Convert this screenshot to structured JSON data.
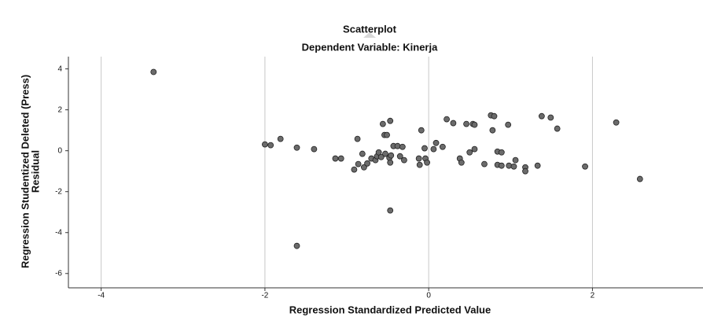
{
  "chart_data": {
    "type": "scatter",
    "title": "Scatterplot",
    "subtitle": "Dependent Variable: Kinerja",
    "xlabel": "Regression Standardized Predicted Value",
    "ylabel": [
      "Regression Studentized Deleted (Press)",
      "Residual"
    ],
    "xlim": [
      -4.4,
      3.35
    ],
    "ylim": [
      -6.7,
      4.6
    ],
    "xticks": [
      -4,
      -2,
      0,
      2
    ],
    "yticks": [
      4,
      2,
      0,
      -2,
      -4,
      -6
    ],
    "grid": true,
    "color": "#6b6b6b",
    "x": [
      -3.36,
      -2.0,
      -1.93,
      -1.81,
      -1.61,
      -1.4,
      -1.61,
      -1.14,
      -1.07,
      -0.87,
      -0.91,
      -0.86,
      -0.81,
      -0.79,
      -0.75,
      -0.7,
      -0.65,
      -0.63,
      -0.61,
      -0.58,
      -0.56,
      -0.54,
      -0.53,
      -0.51,
      -0.48,
      -0.47,
      -0.47,
      -0.46,
      -0.43,
      -0.47,
      -0.38,
      -0.35,
      -0.32,
      -0.3,
      -0.12,
      -0.11,
      -0.09,
      -0.05,
      -0.04,
      -0.02,
      0.06,
      0.09,
      0.17,
      0.22,
      0.3,
      0.38,
      0.4,
      0.46,
      0.5,
      0.54,
      0.56,
      0.56,
      0.68,
      0.76,
      0.8,
      0.78,
      0.84,
      0.84,
      0.89,
      0.89,
      0.97,
      0.98,
      1.04,
      1.06,
      1.18,
      1.18,
      1.33,
      1.38,
      1.49,
      1.57,
      1.91,
      2.29,
      2.58
    ],
    "values": [
      3.85,
      0.31,
      0.27,
      0.58,
      0.15,
      0.08,
      -4.65,
      -0.38,
      -0.38,
      0.58,
      -0.92,
      -0.65,
      -0.15,
      -0.81,
      -0.62,
      -0.38,
      -0.46,
      -0.27,
      -0.08,
      -0.31,
      1.31,
      0.77,
      -0.15,
      0.77,
      -0.35,
      1.46,
      -0.58,
      -0.23,
      0.23,
      -2.92,
      0.23,
      -0.27,
      0.19,
      -0.46,
      -0.38,
      -0.69,
      1.0,
      0.12,
      -0.38,
      -0.58,
      0.08,
      0.38,
      0.19,
      1.54,
      1.35,
      -0.38,
      -0.58,
      1.31,
      -0.08,
      1.31,
      1.27,
      0.08,
      -0.65,
      1.73,
      1.69,
      1.0,
      -0.04,
      -0.69,
      -0.08,
      -0.73,
      1.27,
      -0.73,
      -0.77,
      -0.46,
      -0.81,
      -1.0,
      -0.73,
      1.69,
      1.62,
      1.08,
      -0.77,
      1.38,
      -1.38
    ]
  }
}
